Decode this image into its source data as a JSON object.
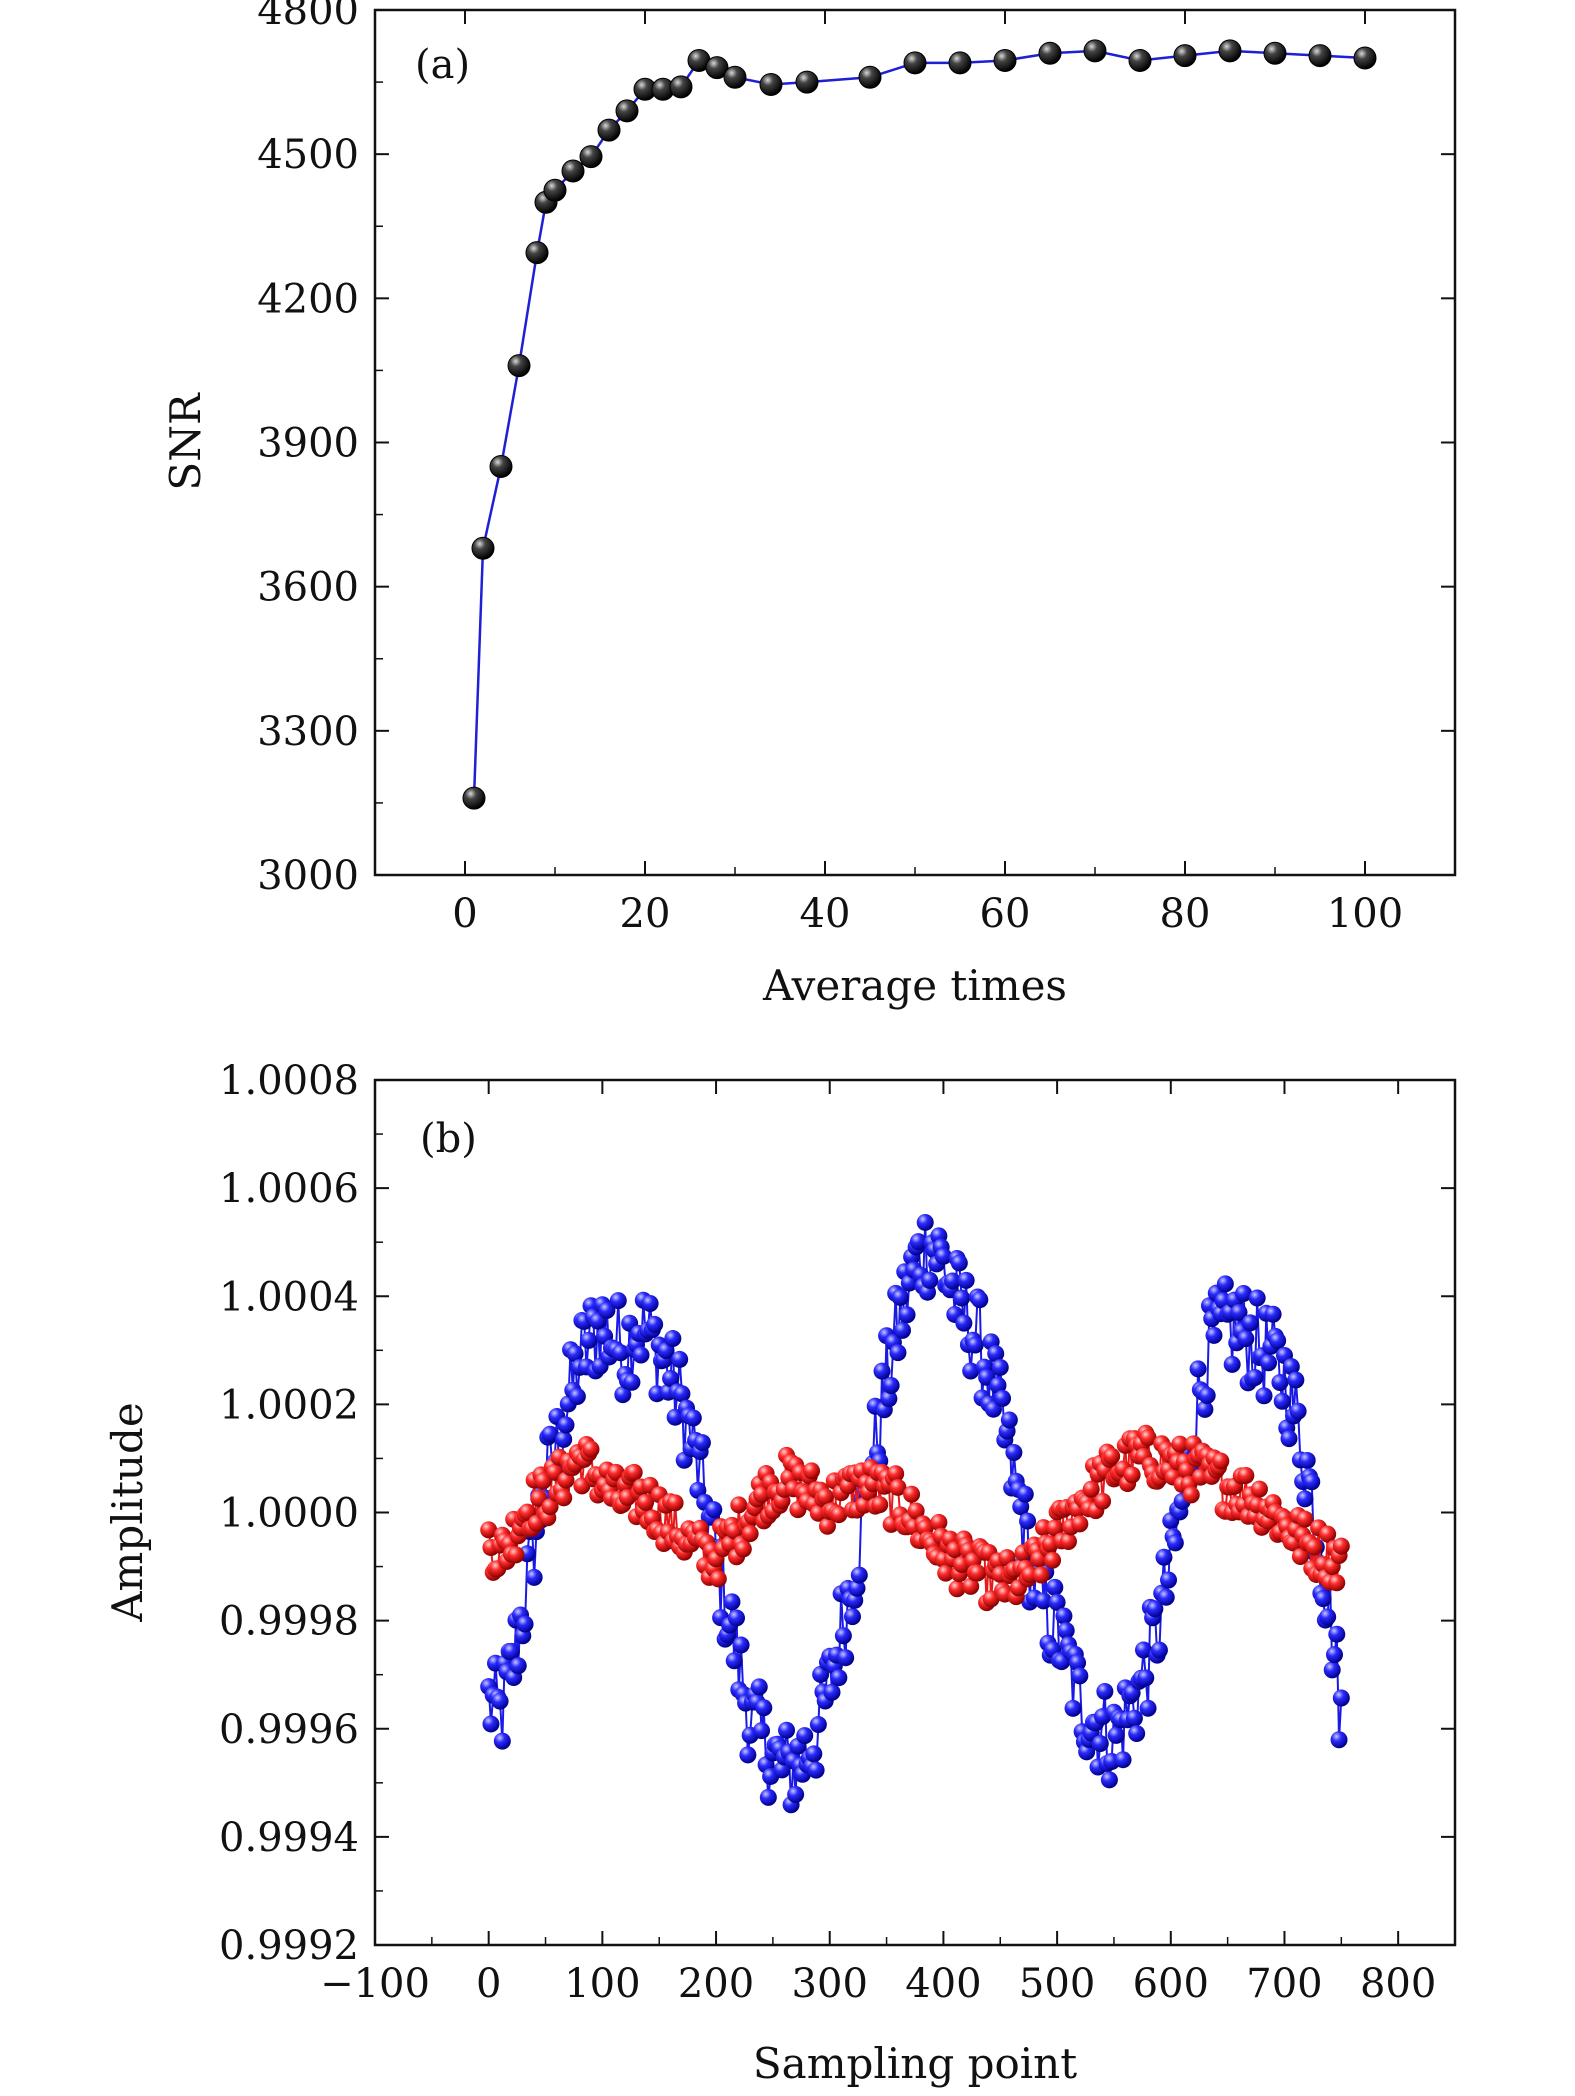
{
  "chart_data": [
    {
      "type": "line",
      "panel_label": "(a)",
      "xlabel": "Average times",
      "ylabel": "SNR",
      "xlim": [
        -10,
        110
      ],
      "ylim": [
        3000,
        4800
      ],
      "xticks": [
        0,
        20,
        40,
        60,
        80,
        100
      ],
      "yticks": [
        3000,
        3300,
        3600,
        3900,
        4200,
        4500,
        4800
      ],
      "grid": false,
      "colors": {
        "line": "#1f1fd6",
        "marker": "#111111"
      },
      "series": [
        {
          "x": [
            1,
            2,
            4,
            6,
            8,
            9,
            10,
            12,
            14,
            16,
            18,
            20,
            22,
            24,
            26,
            28,
            30,
            34,
            38,
            45,
            50,
            55,
            60,
            65,
            70,
            75,
            80,
            85,
            90,
            95,
            100
          ],
          "y": [
            3160,
            3680,
            3850,
            4060,
            4295,
            4400,
            4425,
            4465,
            4495,
            4550,
            4590,
            4635,
            4635,
            4640,
            4695,
            4680,
            4660,
            4645,
            4650,
            4660,
            4690,
            4690,
            4695,
            4710,
            4715,
            4695,
            4705,
            4715,
            4710,
            4705,
            4700
          ]
        }
      ]
    },
    {
      "type": "line",
      "panel_label": "(b)",
      "xlabel": "Sampling point",
      "ylabel": "Amplitude",
      "xlim": [
        -100,
        850
      ],
      "ylim": [
        0.9992,
        1.0008
      ],
      "xticks": [
        -100,
        0,
        100,
        200,
        300,
        400,
        500,
        600,
        700,
        800
      ],
      "xtick_labels": [
        "−100",
        "0",
        "100",
        "200",
        "300",
        "400",
        "500",
        "600",
        "700",
        "800"
      ],
      "yticks": [
        0.9992,
        0.9994,
        0.9996,
        0.9998,
        1.0,
        1.0002,
        1.0004,
        1.0006,
        1.0008
      ],
      "ytick_labels": [
        "0.9992",
        "0.9994",
        "0.9996",
        "0.9998",
        "1.0000",
        "1.0002",
        "1.0004",
        "1.0006",
        "1.0008"
      ],
      "grid": false,
      "series": [
        {
          "color": "#1a1ae6",
          "x": [
            0,
            10,
            20,
            30,
            40,
            50,
            60,
            70,
            80,
            90,
            100,
            110,
            120,
            130,
            140,
            150,
            160,
            170,
            180,
            190,
            200,
            210,
            220,
            230,
            240,
            250,
            260,
            270,
            280,
            290,
            300,
            310,
            320,
            330,
            340,
            350,
            360,
            370,
            380,
            390,
            400,
            410,
            420,
            430,
            440,
            450,
            460,
            470,
            480,
            490,
            500,
            510,
            520,
            530,
            540,
            550,
            560,
            570,
            580,
            590,
            600,
            610,
            620,
            630,
            640,
            650,
            660,
            670,
            680,
            690,
            700,
            710,
            720,
            730,
            740,
            750
          ],
          "y": [
            0.99965,
            0.99962,
            0.9997,
            0.99982,
            0.99995,
            1.00005,
            1.00012,
            1.0002,
            1.00028,
            1.00032,
            1.00035,
            1.00032,
            1.0003,
            1.00035,
            1.00033,
            1.0003,
            1.00025,
            1.0002,
            1.00012,
            1.00002,
            0.99992,
            0.99982,
            0.99972,
            0.99962,
            0.99958,
            0.99955,
            0.99952,
            0.99953,
            0.99956,
            0.9996,
            0.99968,
            0.99978,
            0.99988,
            1.0,
            1.00012,
            1.00024,
            1.00034,
            1.00042,
            1.00048,
            1.0005,
            1.00046,
            1.0004,
            1.00036,
            1.00032,
            1.00026,
            1.00018,
            1.00008,
            0.99998,
            0.99988,
            0.99982,
            0.99978,
            0.99972,
            0.99965,
            0.99962,
            0.9996,
            0.99958,
            0.99962,
            0.99966,
            0.99972,
            0.9998,
            0.9999,
            1.00002,
            1.00015,
            1.00028,
            1.00032,
            1.00034,
            1.00034,
            1.00032,
            1.0003,
            1.00028,
            1.00025,
            1.00018,
            1.00008,
            0.99995,
            0.99982,
            0.99962
          ]
        },
        {
          "color": "#e61a1a",
          "x": [
            0,
            10,
            20,
            30,
            40,
            50,
            60,
            70,
            80,
            90,
            100,
            110,
            120,
            130,
            140,
            150,
            160,
            170,
            180,
            190,
            200,
            210,
            220,
            230,
            240,
            250,
            260,
            270,
            280,
            290,
            300,
            310,
            320,
            330,
            340,
            350,
            360,
            370,
            380,
            390,
            400,
            410,
            420,
            430,
            440,
            450,
            460,
            470,
            480,
            490,
            500,
            510,
            520,
            530,
            540,
            550,
            560,
            570,
            580,
            590,
            600,
            610,
            620,
            630,
            640,
            650,
            660,
            670,
            680,
            690,
            700,
            710,
            720,
            730,
            740,
            750
          ],
          "y": [
            0.99995,
            0.99992,
            0.99995,
            1.0,
            1.00002,
            1.00003,
            1.00005,
            1.00008,
            1.0001,
            1.00008,
            1.00006,
            1.00003,
            1.00002,
            1.00003,
            1.00002,
            1.0,
            0.99998,
            0.99996,
            0.99994,
            0.99992,
            0.99992,
            0.99994,
            0.99997,
            1.0,
            1.00003,
            1.00005,
            1.00006,
            1.00005,
            1.00004,
            1.00003,
            1.00002,
            1.00003,
            1.00004,
            1.00005,
            1.00004,
            1.00003,
            1.00002,
            1.0,
            0.99997,
            0.99995,
            0.99993,
            0.99991,
            0.9999,
            0.99989,
            0.99988,
            0.99987,
            0.99987,
            0.99988,
            0.9999,
            0.99993,
            0.99996,
            0.99999,
            1.00002,
            1.00004,
            1.00006,
            1.00008,
            1.00009,
            1.0001,
            1.0001,
            1.0001,
            1.00009,
            1.00008,
            1.00008,
            1.00007,
            1.00006,
            1.00005,
            1.00004,
            1.00003,
            1.00002,
            1.0,
            0.99998,
            0.99996,
            0.99994,
            0.99993,
            0.99992,
            0.99991
          ]
        }
      ]
    }
  ]
}
